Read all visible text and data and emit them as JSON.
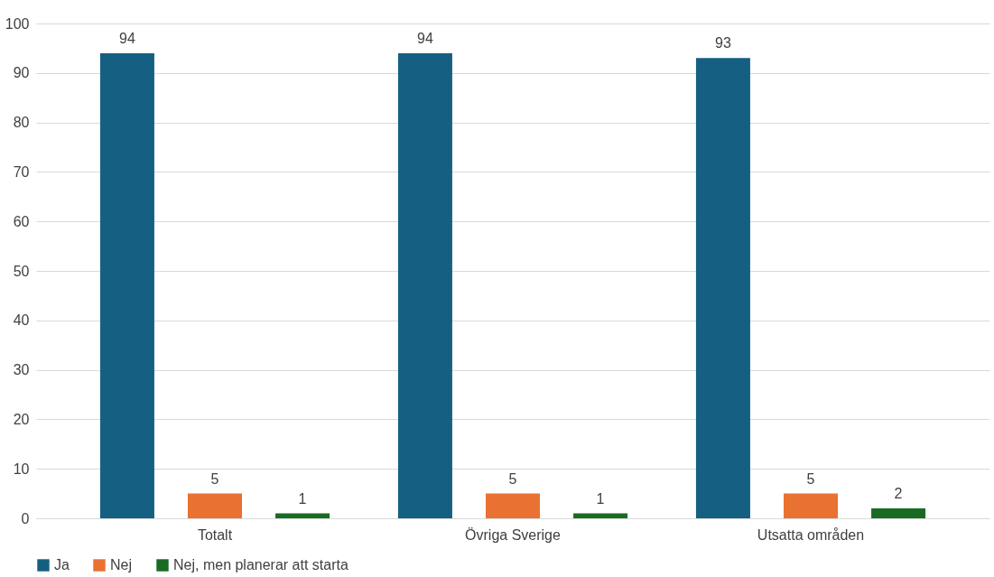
{
  "chart_data": {
    "type": "bar",
    "categories": [
      "Totalt",
      "Övriga Sverige",
      "Utsatta områden"
    ],
    "series": [
      {
        "name": "Ja",
        "color": "#156082",
        "values": [
          94,
          94,
          93
        ]
      },
      {
        "name": "Nej",
        "color": "#e97132",
        "values": [
          5,
          5,
          5
        ]
      },
      {
        "name": "Nej, men planerar att starta",
        "color": "#196b24",
        "values": [
          1,
          1,
          2
        ]
      }
    ],
    "ylim": [
      0,
      100
    ],
    "yticks": [
      0,
      10,
      20,
      30,
      40,
      50,
      60,
      70,
      80,
      90,
      100
    ],
    "grid": "y",
    "legend": "bottom",
    "data_labels": true
  }
}
